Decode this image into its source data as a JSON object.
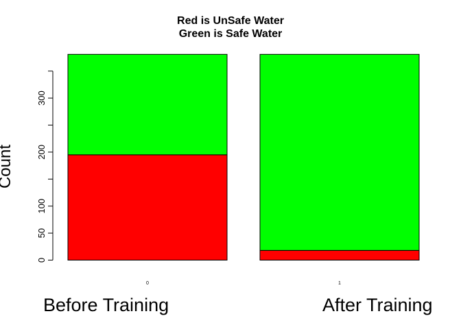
{
  "chart_data": {
    "type": "bar",
    "stacked": true,
    "title": [
      "Red is UnSafe Water",
      "Green is Safe Water"
    ],
    "ylabel": "Count",
    "bar_labels": [
      "0",
      "1"
    ],
    "x_category_labels": [
      "Before Training",
      "After Training"
    ],
    "ylim": [
      0,
      380
    ],
    "y_ticks": [
      0,
      50,
      100,
      200,
      300
    ],
    "y_minor_ticks": [
      150,
      250,
      350
    ],
    "series": [
      {
        "color": "#ff0000",
        "values": [
          195,
          18
        ]
      },
      {
        "color": "#00ff00",
        "values": [
          186,
          363
        ]
      }
    ],
    "grid": false,
    "legend": "none"
  }
}
